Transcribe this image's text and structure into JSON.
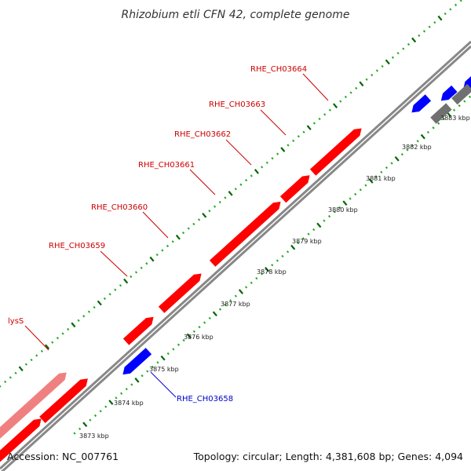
{
  "title": "Rhizobium etli CFN 42, complete genome",
  "footer": {
    "accession": "Accession: NC_007761",
    "summary": "Topology: circular; Length: 4,381,608 bp; Genes: 4,094"
  },
  "colors": {
    "forward_gene": "#ff0000",
    "forward_gene_light": "#f08080",
    "reverse_gene": "#0000ff",
    "gray_gene": "#707070",
    "cyan_gene": "#00cccc",
    "backbone": "#888888",
    "minor_tick": "#22aa22",
    "major_tick": "#006600",
    "label_red": "#cc0000",
    "label_blue": "#0000cc"
  },
  "scale_labels": [
    "3873 kbp",
    "3874 kbp",
    "3875 kbp",
    "3876 kbp",
    "3877 kbp",
    "3878 kbp",
    "3879 kbp",
    "3880 kbp",
    "3881 kbp",
    "3882 kbp",
    "3883 kbp"
  ],
  "gene_labels": [
    {
      "text": "lysS",
      "strand": "forward"
    },
    {
      "text": "RHE_CH03659",
      "strand": "forward"
    },
    {
      "text": "RHE_CH03660",
      "strand": "forward"
    },
    {
      "text": "RHE_CH03661",
      "strand": "forward"
    },
    {
      "text": "RHE_CH03662",
      "strand": "forward"
    },
    {
      "text": "RHE_CH03663",
      "strand": "forward"
    },
    {
      "text": "RHE_CH03664",
      "strand": "forward"
    },
    {
      "text": "RHE_CH03658",
      "strand": "reverse"
    }
  ]
}
